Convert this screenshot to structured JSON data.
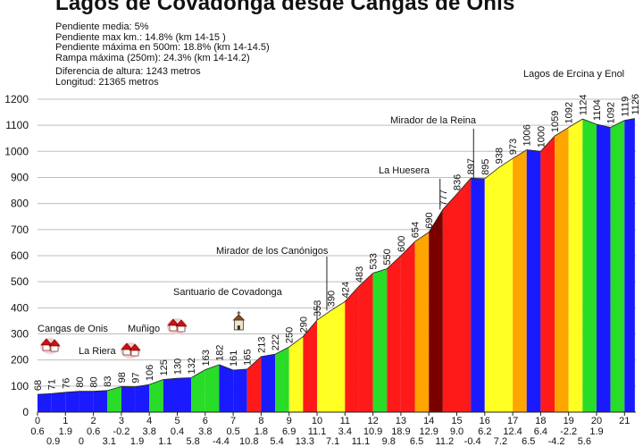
{
  "header": {
    "title": "Lagos de Covadonga desde Cangas de Onis",
    "stats": [
      "Pendiente media: 5%",
      "Pendiente max km.: 14.8% (km 14-15 )",
      "Pendiente máxima en 500m: 18.8% (km 14-14.5)",
      "Rampa máxima (250m): 24.3% (km 14-14.2)",
      "Diferencia de altura: 1243 metros",
      "Longitud: 21365 metros"
    ]
  },
  "chart_data": {
    "type": "area",
    "title": "Lagos de Covadonga desde Cangas de Onis",
    "xlim": [
      0,
      21.37
    ],
    "ylim": [
      0,
      1200
    ],
    "y_ticks": [
      0,
      100,
      200,
      300,
      400,
      500,
      600,
      700,
      800,
      900,
      1000,
      1100,
      1200
    ],
    "x_ticks": [
      0,
      1,
      2,
      3,
      4,
      5,
      6,
      7,
      8,
      9,
      10,
      11,
      12,
      13,
      14,
      15,
      16,
      17,
      18,
      19,
      20,
      21
    ],
    "grid": true,
    "points_x": [
      0,
      0.5,
      1,
      1.5,
      2,
      2.5,
      3,
      3.5,
      4,
      4.5,
      5,
      5.5,
      6,
      6.5,
      7,
      7.5,
      8,
      8.5,
      9,
      9.5,
      10,
      10.5,
      11,
      11.5,
      12,
      12.5,
      13,
      13.5,
      14,
      14.5,
      15,
      15.5,
      16,
      16.5,
      17,
      17.5,
      18,
      18.5,
      19,
      19.5,
      20,
      20.5,
      21,
      21.37
    ],
    "points_y": [
      68,
      71,
      76,
      80,
      80,
      83,
      98,
      97,
      106,
      125,
      130,
      132,
      163,
      182,
      161,
      165,
      213,
      222,
      250,
      290,
      353,
      390,
      424,
      483,
      533,
      550,
      600,
      654,
      690,
      777,
      836,
      897,
      895,
      938,
      973,
      1006,
      1000,
      1059,
      1092,
      1124,
      1104,
      1092,
      1119,
      1126
    ],
    "elevation_labels": [
      "68",
      "71",
      "76",
      "80",
      "80",
      "83",
      "98",
      "97",
      "106",
      "125",
      "130",
      "132",
      "163",
      "182",
      "161",
      "165",
      "213",
      "222",
      "250",
      "290",
      "353",
      "390",
      "424",
      "483",
      "533",
      "550",
      "600",
      "654",
      "690",
      "777",
      "836",
      "897",
      "895",
      "938",
      "973",
      "1006",
      "1000",
      "1059",
      "1092",
      "1124",
      "1104",
      "1092",
      "1119",
      "1126"
    ],
    "segment_colors": [
      "#1a1aff",
      "#1a1aff",
      "#1a1aff",
      "#1a1aff",
      "#1a1aff",
      "#28dc28",
      "#1a1aff",
      "#1a1aff",
      "#28dc28",
      "#1a1aff",
      "#1a1aff",
      "#28dc28",
      "#28dc28",
      "#1a1aff",
      "#1a1aff",
      "#ff1a1a",
      "#1a1aff",
      "#28dc28",
      "#ffff22",
      "#ff1a1a",
      "#ffff22",
      "#ffff22",
      "#ff1a1a",
      "#ff1a1a",
      "#28dc28",
      "#ff1a1a",
      "#ff1a1a",
      "#ffa500",
      "#7a0000",
      "#ff1a1a",
      "#ff1a1a",
      "#1a1aff",
      "#ffff22",
      "#ffff22",
      "#ffa500",
      "#1a1aff",
      "#ff1a1a",
      "#ffa500",
      "#ffff22",
      "#28dc28",
      "#1a1aff",
      "#28dc28",
      "#1a1aff"
    ],
    "gradients_row1": [
      "0.6",
      "1.9",
      "0.6",
      "-0.2",
      "3.8",
      "0.4",
      "3.8",
      "0.5",
      "1.8",
      "6.9",
      "11.1",
      "3.4",
      "10.9",
      "18.9",
      "12.9",
      "9.0",
      "6.2",
      "12.4",
      "6.4",
      "-2.2",
      "1.9"
    ],
    "gradients_row2": [
      "0.9",
      "0",
      "3.1",
      "1.9",
      "1.1",
      "5.8",
      "-4.4",
      "10.8",
      "5.4",
      "13.3",
      "7.1",
      "11.1",
      "9.8",
      "6.5",
      "11.2",
      "-0.4",
      "7.2",
      "6.5",
      "-4.2",
      "5.6"
    ],
    "places": [
      {
        "name": "Cangas de Onis",
        "icon": "houses-icon"
      },
      {
        "name": "La Riera",
        "icon": "houses-icon"
      },
      {
        "name": "Muñigo",
        "icon": "houses-icon"
      },
      {
        "name": "",
        "icon": "chapel-icon"
      },
      {
        "name": "Santuario de Covadonga",
        "icon": ""
      },
      {
        "name": "Mirador de los Canónigos",
        "icon": ""
      },
      {
        "name": "La Huesera",
        "icon": ""
      },
      {
        "name": "Mirador de la Reina",
        "icon": ""
      },
      {
        "name": "Lagos de Ercina y Enol",
        "icon": ""
      }
    ]
  }
}
